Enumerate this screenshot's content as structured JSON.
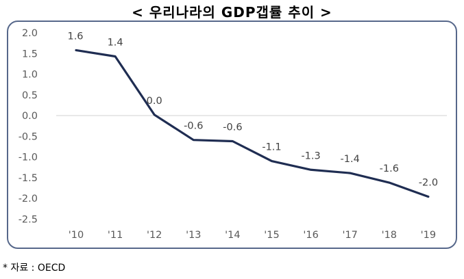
{
  "title": "< 우리나라의 GDP갭률 추이 >",
  "source": "* 자료 : OECD",
  "colors": {
    "line": "#1f2d52",
    "frame": "#56678a",
    "gridline": "#d9d9d9",
    "axis_text": "#595959"
  },
  "chart_data": {
    "type": "line",
    "title": "< 우리나라의 GDP갭률 추이 >",
    "xlabel": "",
    "ylabel": "",
    "categories": [
      "'10",
      "'11",
      "'12",
      "'13",
      "'14",
      "'15",
      "'16",
      "'17",
      "'18",
      "'19"
    ],
    "series": [
      {
        "name": "GDP갭률",
        "values": [
          1.6,
          1.4,
          0.0,
          -0.6,
          -0.6,
          -1.1,
          -1.3,
          -1.4,
          -1.6,
          -2.0
        ],
        "plotted_values": [
          1.58,
          1.43,
          0.02,
          -0.59,
          -0.62,
          -1.1,
          -1.31,
          -1.39,
          -1.62,
          -1.96
        ],
        "data_labels": [
          "1.6",
          "1.4",
          "0.0",
          "-0.6",
          "-0.6",
          "-1.1",
          "-1.3",
          "-1.4",
          "-1.6",
          "-2.0"
        ]
      }
    ],
    "y_ticks": [
      "2.0",
      "1.5",
      "1.0",
      "0.5",
      "0.0",
      "-0.5",
      "-1.0",
      "-1.5",
      "-2.0",
      "-2.5"
    ],
    "ylim": [
      -2.5,
      2.0
    ],
    "grid": "zero line only",
    "legend": "none",
    "source": "OECD"
  }
}
